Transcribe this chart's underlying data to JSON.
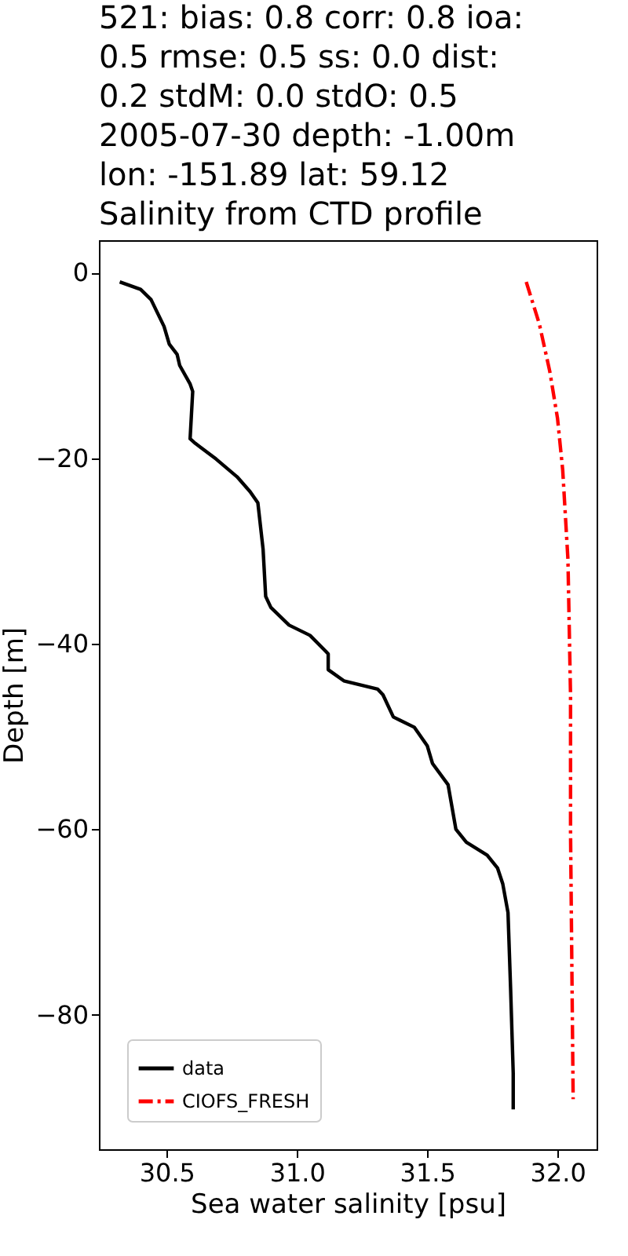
{
  "chart_data": {
    "type": "line",
    "title": "521: bias: 0.8  corr: 0.8  ioa:\n0.5  rmse: 0.5  ss: 0.0  dist:\n0.2  stdM: 0.0  stdO: 0.5\n2005-07-30 depth: -1.00m\nlon: -151.89 lat: 59.12\nSalinity from CTD profile",
    "xlabel": "Sea water salinity [psu]",
    "ylabel": "Depth [m]",
    "xlim": [
      30.24,
      32.15
    ],
    "xticks": [
      30.5,
      {
        "value": 31,
        "label": "31.0"
      },
      31.5,
      {
        "value": 32,
        "label": "32.0"
      }
    ],
    "ylim": [
      -94.5,
      3.5
    ],
    "yticks": [
      -80,
      -60,
      -40,
      -20,
      0
    ],
    "grid": false,
    "legend": "bottom left",
    "series": [
      {
        "name": "data",
        "color": "#000000",
        "line_style": "solid",
        "x": [
          30.32,
          30.4,
          30.44,
          30.49,
          30.51,
          30.54,
          30.55,
          30.59,
          30.6,
          30.59,
          30.61,
          30.69,
          30.77,
          30.82,
          30.85,
          30.87,
          30.88,
          30.9,
          30.97,
          31.05,
          31.11,
          31.12,
          31.12,
          31.18,
          31.31,
          31.33,
          31.37,
          31.45,
          31.5,
          31.52,
          31.58,
          31.61,
          31.65,
          31.73,
          31.77,
          31.79,
          31.81,
          31.82,
          31.83,
          31.83
        ],
        "values": [
          -1.0,
          -1.8,
          -2.9,
          -5.8,
          -7.7,
          -8.8,
          -10,
          -12,
          -12.8,
          -17.9,
          -18.4,
          -20.1,
          -22,
          -23.6,
          -24.8,
          -29.8,
          -34.9,
          -36.1,
          -38,
          -39.1,
          -40.8,
          -41.1,
          -42.8,
          -44,
          -44.9,
          -45.5,
          -47.9,
          -49,
          -51,
          -52.9,
          -55.2,
          -60,
          -61.4,
          -62.8,
          -64.2,
          -65.9,
          -69,
          -77.2,
          -86.3,
          -90.2
        ]
      },
      {
        "name": "CIOFS_FRESH",
        "color": "#ff0000",
        "line_style": "dashdot",
        "x": [
          31.88,
          31.93,
          31.97,
          32.0,
          32.02,
          32.04,
          32.05,
          32.05,
          32.06
        ],
        "values": [
          -1.0,
          -5.5,
          -10.6,
          -15.7,
          -21.3,
          -30.9,
          -45.6,
          -60.3,
          -89.1
        ]
      }
    ]
  }
}
